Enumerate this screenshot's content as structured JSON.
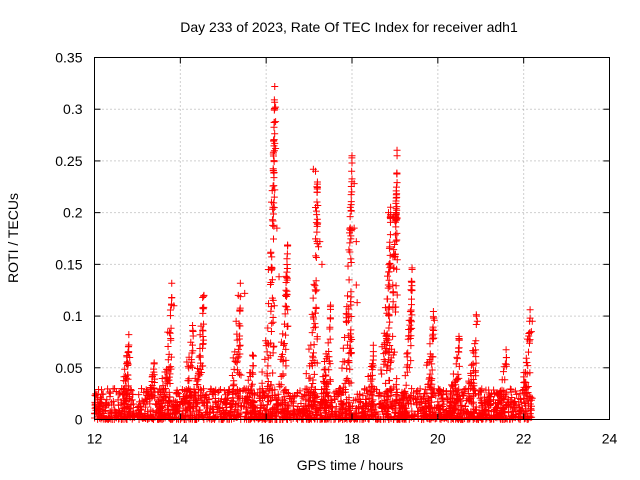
{
  "chart_data": {
    "type": "scatter",
    "title": "Day 233 of 2023, Rate Of TEC Index for receiver adh1",
    "xlabel": "GPS time / hours",
    "ylabel": "ROTI / TECUs",
    "xlim": [
      12,
      24
    ],
    "ylim": [
      0,
      0.35
    ],
    "x_ticks": [
      "12",
      "14",
      "16",
      "18",
      "20",
      "22",
      "24"
    ],
    "y_ticks": [
      "0",
      "0.05",
      "0.1",
      "0.15",
      "0.2",
      "0.25",
      "0.3",
      "0.35"
    ],
    "grid": true,
    "marker": "+",
    "color": "#ff0000",
    "observed_range": {
      "x_start": 12.0,
      "x_end": 22.2
    },
    "background_level": {
      "typical_min": 0.0,
      "typical_max": 0.03
    },
    "peak_arcs": [
      {
        "x": 12.8,
        "y": 0.07
      },
      {
        "x": 13.4,
        "y": 0.045
      },
      {
        "x": 13.8,
        "y": 0.12
      },
      {
        "x": 14.3,
        "y": 0.09
      },
      {
        "x": 14.55,
        "y": 0.12
      },
      {
        "x": 15.4,
        "y": 0.122
      },
      {
        "x": 15.7,
        "y": 0.06
      },
      {
        "x": 16.2,
        "y": 0.322
      },
      {
        "x": 16.5,
        "y": 0.168
      },
      {
        "x": 17.2,
        "y": 0.242
      },
      {
        "x": 17.5,
        "y": 0.1
      },
      {
        "x": 18.0,
        "y": 0.255
      },
      {
        "x": 18.5,
        "y": 0.06
      },
      {
        "x": 18.9,
        "y": 0.2
      },
      {
        "x": 19.05,
        "y": 0.255
      },
      {
        "x": 19.4,
        "y": 0.145
      },
      {
        "x": 19.9,
        "y": 0.098
      },
      {
        "x": 20.5,
        "y": 0.077
      },
      {
        "x": 20.9,
        "y": 0.1
      },
      {
        "x": 21.6,
        "y": 0.06
      },
      {
        "x": 22.15,
        "y": 0.098
      }
    ],
    "sample_points": [
      [
        16.2,
        0.322
      ],
      [
        16.22,
        0.302
      ],
      [
        16.22,
        0.288
      ],
      [
        16.2,
        0.267
      ],
      [
        16.22,
        0.262
      ],
      [
        16.2,
        0.222
      ],
      [
        16.25,
        0.185
      ],
      [
        16.3,
        0.138
      ],
      [
        16.45,
        0.12
      ],
      [
        16.5,
        0.168
      ],
      [
        17.1,
        0.242
      ],
      [
        17.15,
        0.24
      ],
      [
        17.18,
        0.225
      ],
      [
        17.15,
        0.205
      ],
      [
        17.2,
        0.19
      ],
      [
        17.25,
        0.172
      ],
      [
        17.22,
        0.167
      ],
      [
        17.3,
        0.15
      ],
      [
        18.0,
        0.255
      ],
      [
        18.0,
        0.248
      ],
      [
        18.05,
        0.228
      ],
      [
        18.05,
        0.185
      ],
      [
        18.1,
        0.172
      ],
      [
        17.95,
        0.162
      ],
      [
        18.1,
        0.13
      ],
      [
        18.12,
        0.113
      ],
      [
        18.85,
        0.2
      ],
      [
        18.9,
        0.198
      ],
      [
        18.88,
        0.151
      ],
      [
        18.95,
        0.13
      ],
      [
        19.05,
        0.255
      ],
      [
        19.05,
        0.229
      ],
      [
        19.03,
        0.221
      ],
      [
        19.05,
        0.195
      ],
      [
        19.0,
        0.192
      ],
      [
        19.4,
        0.145
      ],
      [
        19.4,
        0.125
      ],
      [
        19.35,
        0.087
      ],
      [
        13.8,
        0.118
      ],
      [
        13.85,
        0.11
      ],
      [
        14.55,
        0.12
      ],
      [
        14.52,
        0.118
      ],
      [
        15.35,
        0.12
      ],
      [
        15.5,
        0.122
      ],
      [
        15.3,
        0.095
      ],
      [
        12.8,
        0.072
      ],
      [
        12.78,
        0.065
      ],
      [
        12.82,
        0.06
      ],
      [
        19.9,
        0.098
      ],
      [
        19.92,
        0.096
      ],
      [
        20.5,
        0.077
      ],
      [
        20.9,
        0.1
      ],
      [
        20.92,
        0.095
      ],
      [
        21.6,
        0.06
      ],
      [
        22.15,
        0.098
      ],
      [
        22.2,
        0.095
      ],
      [
        22.18,
        0.085
      ]
    ]
  }
}
